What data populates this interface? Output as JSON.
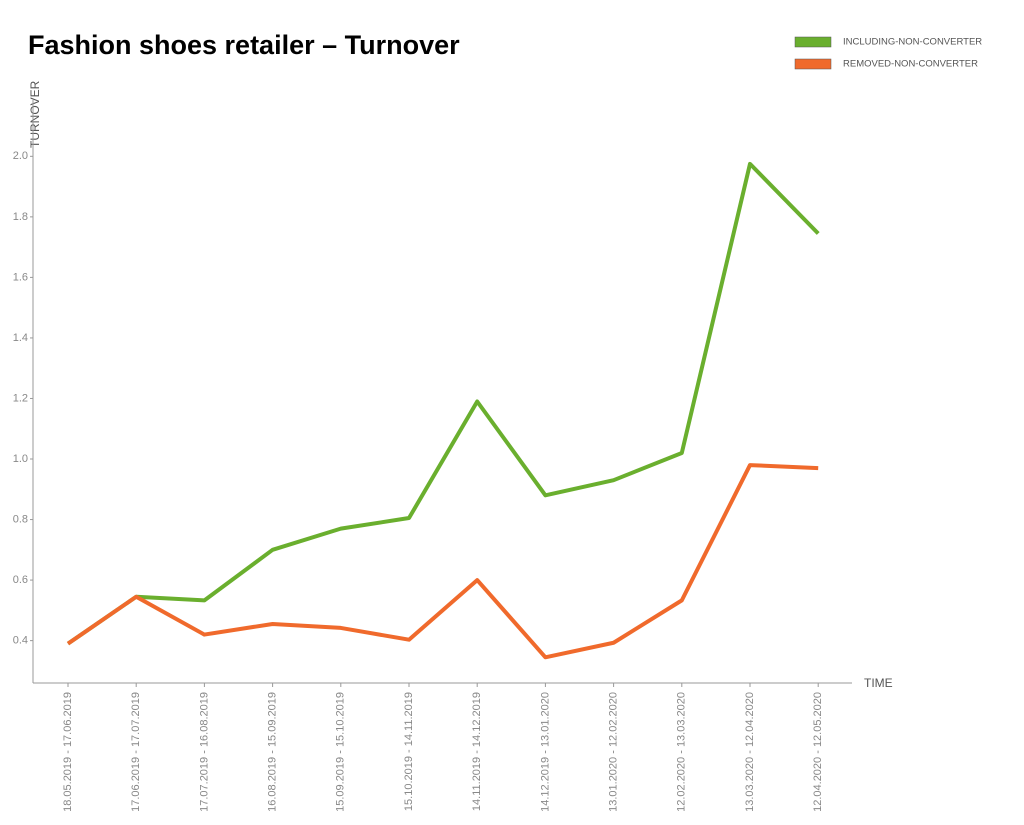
{
  "chart_data": {
    "type": "line",
    "title": "Fashion shoes retailer – Turnover",
    "y_label": "TURNOVER",
    "x_label": "TIME",
    "categories": [
      "18.05.2019 - 17.06.2019",
      "17.06.2019 - 17.07.2019",
      "17.07.2019 - 16.08.2019",
      "16.08.2019 - 15.09.2019",
      "15.09.2019 - 15.10.2019",
      "15.10.2019 - 14.11.2019",
      "14.11.2019 - 14.12.2019",
      "14.12.2019 - 13.01.2020",
      "13.01.2020 - 12.02.2020",
      "12.02.2020 - 13.03.2020",
      "13.03.2020 - 12.04.2020",
      "12.04.2020 - 12.05.2020"
    ],
    "series": [
      {
        "name": "INCLUDING-NON-CONVERTER",
        "color": "#6aaf2e",
        "values": [
          0.39,
          0.545,
          0.533,
          0.7,
          0.77,
          0.805,
          1.19,
          0.88,
          0.93,
          1.02,
          1.975,
          1.745
        ]
      },
      {
        "name": "REMOVED-NON-CONVERTER",
        "color": "#f06a2c",
        "values": [
          0.39,
          0.545,
          0.42,
          0.455,
          0.442,
          0.403,
          0.6,
          0.345,
          0.393,
          0.533,
          0.98,
          0.97
        ]
      }
    ],
    "ylim": [
      0.26,
      2.12
    ],
    "yticks": [
      0.4,
      0.6,
      0.8,
      {
        "value": 1.0,
        "label": "1.0"
      },
      1.2,
      1.4,
      1.6,
      1.8,
      {
        "value": 2.0,
        "label": "2.0"
      }
    ]
  }
}
